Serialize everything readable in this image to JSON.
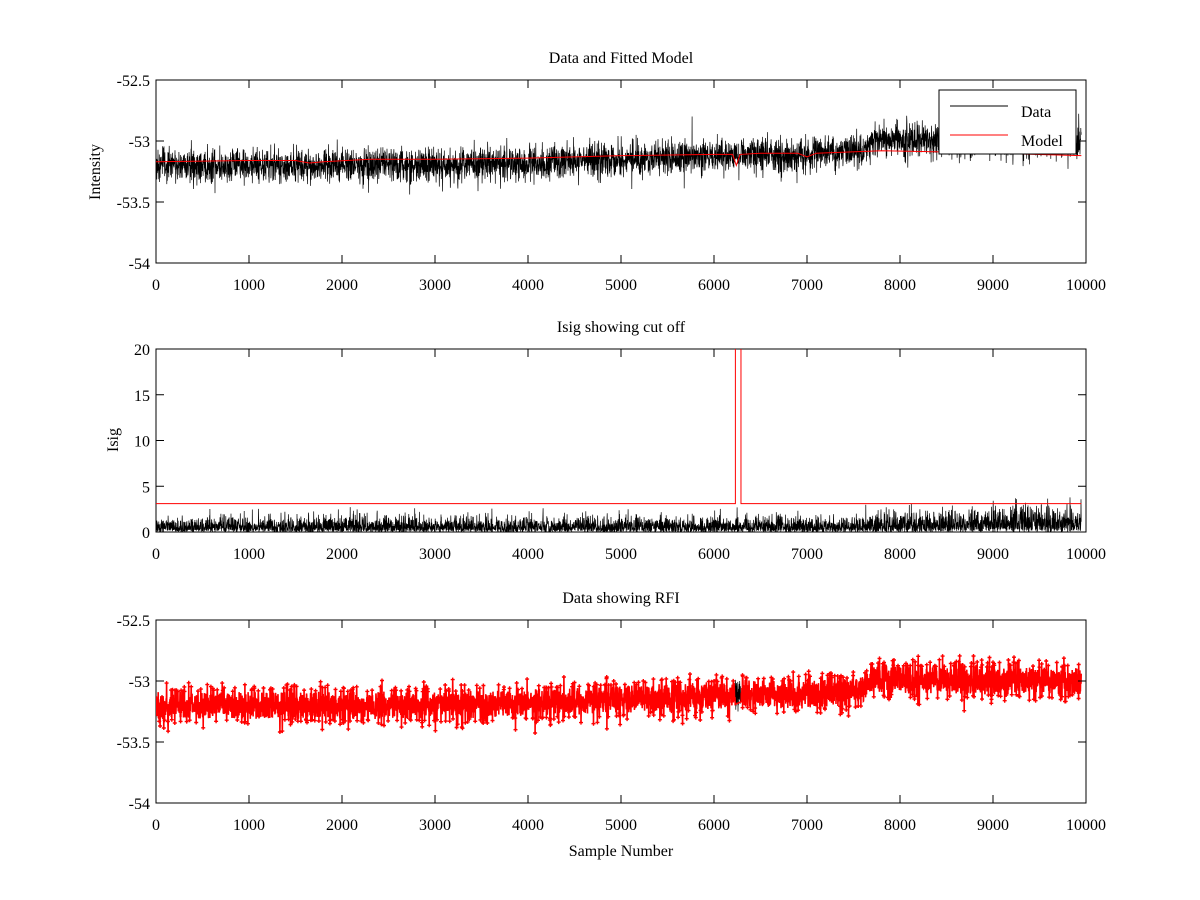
{
  "figure": {
    "background": "#ffffff",
    "colors": {
      "data": "#000000",
      "model": "#ff0000",
      "axis": "#000000"
    }
  },
  "chart_data": [
    {
      "type": "line",
      "title": "Data and Fitted Model",
      "xlabel": "",
      "ylabel": "Intensity",
      "xlim": [
        0,
        10000
      ],
      "ylim": [
        -54,
        -52.5
      ],
      "xticks": [
        0,
        1000,
        2000,
        3000,
        4000,
        5000,
        6000,
        7000,
        8000,
        9000,
        10000
      ],
      "yticks": [
        -54,
        -53.5,
        -53,
        -52.5
      ],
      "x_tick_labels": [
        "0",
        "1000",
        "2000",
        "3000",
        "4000",
        "5000",
        "6000",
        "7000",
        "8000",
        "9000",
        "10000"
      ],
      "y_tick_labels": [
        "-54",
        "-53.5",
        "-53",
        "-52.5"
      ],
      "grid": false,
      "legend": {
        "placement": "top-right",
        "entries": [
          "Data",
          "Model"
        ]
      },
      "series": [
        {
          "name": "Data",
          "color": "#000000",
          "style": "noisy-line",
          "n_samples": 9950,
          "mean_x": [
            0,
            1600,
            3000,
            4000,
            5000,
            6000,
            6240,
            6300,
            6900,
            7600,
            7700,
            8500,
            9950
          ],
          "mean_y": [
            -53.2,
            -53.2,
            -53.2,
            -53.18,
            -53.15,
            -53.12,
            -53.12,
            -53.1,
            -53.12,
            -53.08,
            -52.98,
            -53.0,
            -53.0
          ],
          "sigma": 0.07,
          "extremes": {
            "max": -52.75,
            "min": -53.53
          }
        },
        {
          "name": "Model",
          "color": "#ff0000",
          "style": "line",
          "x": [
            0,
            1000,
            1500,
            1650,
            1800,
            2300,
            3000,
            4000,
            5000,
            6000,
            6200,
            6240,
            6280,
            6500,
            6900,
            7000,
            7100,
            7800,
            8500,
            9000,
            9950
          ],
          "y": [
            -53.17,
            -53.16,
            -53.16,
            -53.18,
            -53.17,
            -53.15,
            -53.15,
            -53.14,
            -53.12,
            -53.11,
            -53.11,
            -53.2,
            -53.11,
            -53.1,
            -53.1,
            -53.13,
            -53.1,
            -53.08,
            -53.09,
            -53.1,
            -53.12
          ]
        }
      ]
    },
    {
      "type": "line",
      "title": "Isig showing cut off",
      "xlabel": "",
      "ylabel": "Isig",
      "xlim": [
        0,
        10000
      ],
      "ylim": [
        0,
        20
      ],
      "xticks": [
        0,
        1000,
        2000,
        3000,
        4000,
        5000,
        6000,
        7000,
        8000,
        9000,
        10000
      ],
      "yticks": [
        0,
        5,
        10,
        15,
        20
      ],
      "x_tick_labels": [
        "0",
        "1000",
        "2000",
        "3000",
        "4000",
        "5000",
        "6000",
        "7000",
        "8000",
        "9000",
        "10000"
      ],
      "y_tick_labels": [
        "0",
        "5",
        "10",
        "15",
        "20"
      ],
      "grid": false,
      "series": [
        {
          "color": "#000000",
          "style": "noisy-positive",
          "n_samples": 9950,
          "baseline_x": [
            0,
            7500,
            8000,
            9000,
            9950
          ],
          "baseline_y": [
            0.8,
            0.8,
            1.0,
            1.2,
            1.5
          ],
          "extremes": {
            "max": 3.8
          }
        },
        {
          "color": "#ff0000",
          "style": "line",
          "x": [
            0,
            6230,
            6230,
            6290,
            6290,
            9950
          ],
          "y": [
            3.1,
            3.1,
            25,
            25,
            3.1,
            3.1
          ]
        }
      ]
    },
    {
      "type": "line",
      "title": "Data showing RFI",
      "xlabel": "Sample Number",
      "ylabel": "",
      "xlim": [
        0,
        10000
      ],
      "ylim": [
        -54,
        -52.5
      ],
      "xticks": [
        0,
        1000,
        2000,
        3000,
        4000,
        5000,
        6000,
        7000,
        8000,
        9000,
        10000
      ],
      "yticks": [
        -54,
        -53.5,
        -53,
        -52.5
      ],
      "x_tick_labels": [
        "0",
        "1000",
        "2000",
        "3000",
        "4000",
        "5000",
        "6000",
        "7000",
        "8000",
        "9000",
        "10000"
      ],
      "y_tick_labels": [
        "-54",
        "-53.5",
        "-53",
        "-52.5"
      ],
      "grid": false,
      "series": [
        {
          "color": "#000000",
          "style": "noisy-line",
          "n_samples": 9950,
          "mean_x": [
            0,
            1600,
            3000,
            4000,
            5000,
            6000,
            6240,
            6300,
            6900,
            7600,
            7700,
            8500,
            9950
          ],
          "mean_y": [
            -53.2,
            -53.2,
            -53.2,
            -53.18,
            -53.15,
            -53.12,
            -53.12,
            -53.1,
            -53.12,
            -53.08,
            -52.98,
            -53.0,
            -53.0
          ],
          "sigma": 0.07,
          "extremes": {
            "max": -52.75,
            "min": -53.45
          }
        },
        {
          "color": "#ff0000",
          "style": "dotted-markers",
          "gap": [
            6230,
            6290
          ],
          "n_samples": 9950,
          "mean_x": [
            0,
            1600,
            3000,
            4000,
            5000,
            6000,
            6240,
            6300,
            6900,
            7600,
            7700,
            8500,
            9950
          ],
          "mean_y": [
            -53.2,
            -53.2,
            -53.2,
            -53.18,
            -53.15,
            -53.12,
            -53.12,
            -53.1,
            -53.12,
            -53.08,
            -52.98,
            -53.0,
            -53.0
          ],
          "sigma": 0.07
        }
      ]
    }
  ]
}
